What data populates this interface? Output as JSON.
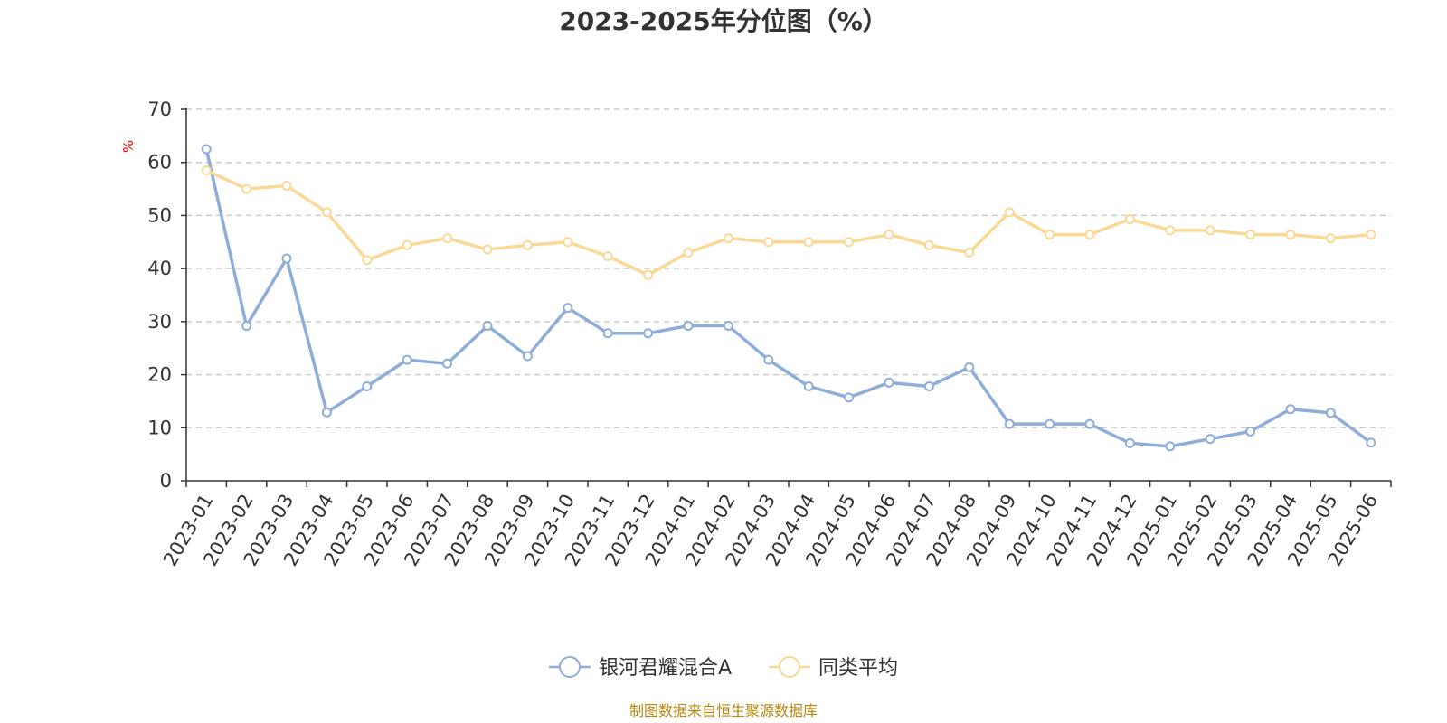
{
  "colors": {
    "series_fund": "#8eadd8",
    "series_avg": "#fad996",
    "axis": "#333333",
    "grid": "#cccccc",
    "unit_label": "#ff0000",
    "source_text": "#b8860b"
  },
  "source": "制图数据来自恒生聚源数据库",
  "chart_data": {
    "type": "line",
    "title": "2023-2025年分位图（%）",
    "ylabel": "%",
    "ylim": [
      0,
      70
    ],
    "yticks": [
      0,
      10,
      20,
      30,
      40,
      50,
      60,
      70
    ],
    "grid": true,
    "legend_position": "bottom-center",
    "categories": [
      "2023-01",
      "2023-02",
      "2023-03",
      "2023-04",
      "2023-05",
      "2023-06",
      "2023-07",
      "2023-08",
      "2023-09",
      "2023-10",
      "2023-11",
      "2023-12",
      "2024-01",
      "2024-02",
      "2024-03",
      "2024-04",
      "2024-05",
      "2024-06",
      "2024-07",
      "2024-08",
      "2024-09",
      "2024-10",
      "2024-11",
      "2024-12",
      "2025-01",
      "2025-02",
      "2025-03",
      "2025-04",
      "2025-05",
      "2025-06"
    ],
    "series": [
      {
        "name": "银河君耀混合A",
        "color": "#8eadd8",
        "values": [
          62.5,
          29.2,
          41.9,
          12.9,
          17.8,
          22.8,
          22.1,
          29.2,
          23.5,
          32.6,
          27.8,
          27.8,
          29.2,
          29.2,
          22.8,
          17.8,
          15.7,
          18.5,
          17.8,
          21.4,
          10.7,
          10.7,
          10.7,
          7.1,
          6.5,
          7.9,
          9.3,
          13.5,
          12.8,
          7.2
        ]
      },
      {
        "name": "同类平均",
        "color": "#fad996",
        "values": [
          58.5,
          55.0,
          55.6,
          50.6,
          41.6,
          44.4,
          45.7,
          43.6,
          44.4,
          45.0,
          42.3,
          38.8,
          43.0,
          45.7,
          45.0,
          45.0,
          45.0,
          46.4,
          44.4,
          43.0,
          50.6,
          46.4,
          46.4,
          49.3,
          47.2,
          47.2,
          46.4,
          46.4,
          45.7,
          46.4
        ]
      }
    ]
  }
}
